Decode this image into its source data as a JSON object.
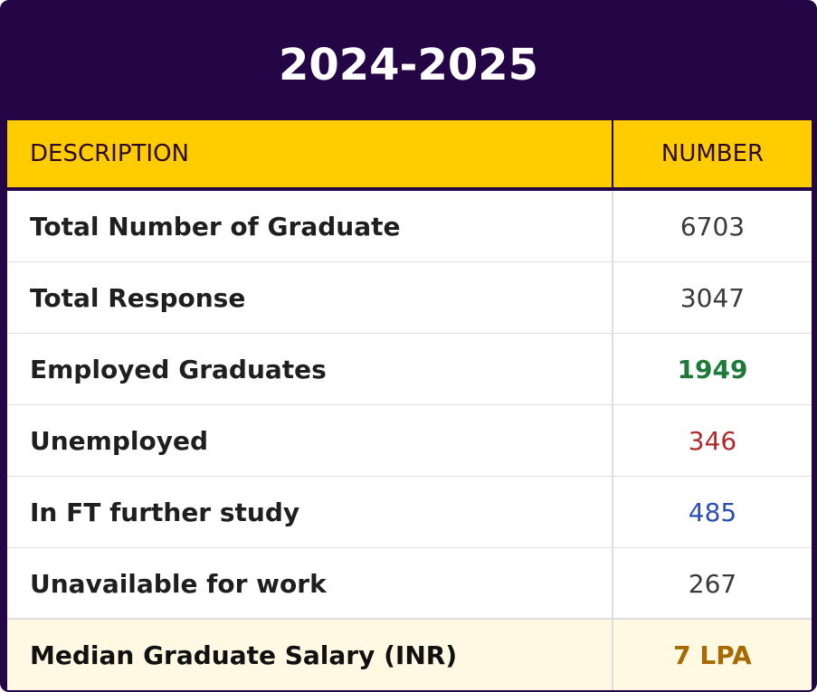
{
  "title": "2024-2025",
  "table": {
    "headers": {
      "description": "DESCRIPTION",
      "number": "NUMBER"
    },
    "rows": [
      {
        "description": "Total Number of Graduate",
        "number": "6703"
      },
      {
        "description": "Total Response",
        "number": "3047"
      },
      {
        "description": "Employed Graduates",
        "number": "1949"
      },
      {
        "description": "Unemployed",
        "number": "346"
      },
      {
        "description": "In FT further study",
        "number": "485"
      },
      {
        "description": "Unavailable for work",
        "number": "267"
      }
    ],
    "summary": {
      "description": "Median Graduate Salary (INR)",
      "number": "7 LPA"
    }
  },
  "colors": {
    "frame": "#240646",
    "header_bg": "#ffcc00",
    "employed": "#1f7a3a",
    "unemployed": "#b02a2a",
    "further_study": "#2a4fb0",
    "salary": "#a66a00",
    "summary_bg": "#fff8e3"
  }
}
